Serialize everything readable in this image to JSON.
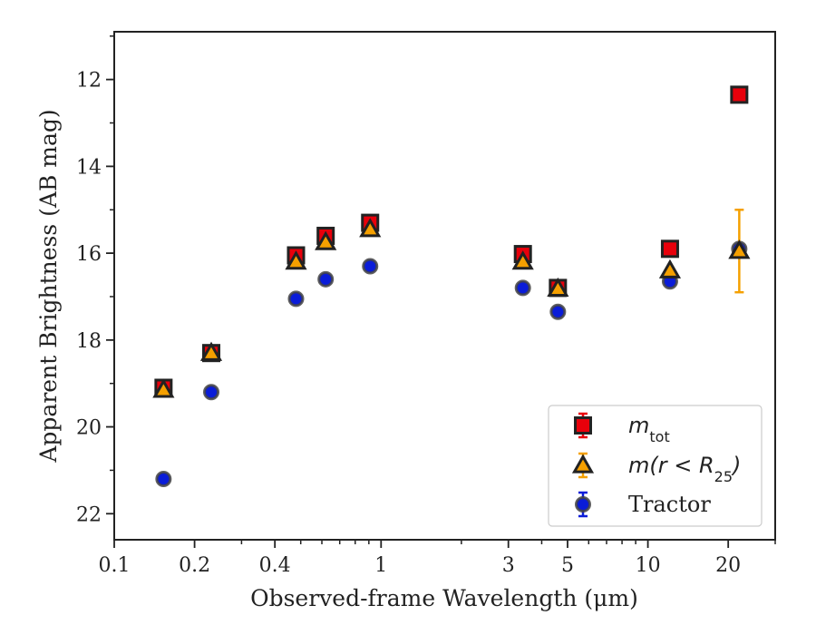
{
  "chart_data": {
    "type": "scatter",
    "title": "",
    "xlabel": "Observed-frame Wavelength (μm)",
    "ylabel": "Apparent Brightness (AB mag)",
    "xscale": "log",
    "xlim": [
      0.1,
      30
    ],
    "ylim": [
      22.6,
      10.9
    ],
    "y_inverted": true,
    "xticks": [
      {
        "value": 0.1,
        "label": "0.1"
      },
      {
        "value": 0.2,
        "label": "0.2"
      },
      {
        "value": 0.4,
        "label": "0.4"
      },
      {
        "value": 1,
        "label": "1"
      },
      {
        "value": 3,
        "label": "3"
      },
      {
        "value": 5,
        "label": "5"
      },
      {
        "value": 10,
        "label": "10"
      },
      {
        "value": 20,
        "label": "20"
      }
    ],
    "yticks": [
      {
        "value": 12,
        "label": "12"
      },
      {
        "value": 14,
        "label": "14"
      },
      {
        "value": 16,
        "label": "16"
      },
      {
        "value": 18,
        "label": "18"
      },
      {
        "value": 20,
        "label": "20"
      },
      {
        "value": 22,
        "label": "22"
      }
    ],
    "grid": false,
    "legend_position": "lower-right",
    "series": [
      {
        "name": "m_tot",
        "label_base": "m",
        "label_sub": "tot",
        "marker": "square",
        "color": "#e8000b",
        "edge": "#222222",
        "x": [
          0.153,
          0.231,
          0.48,
          0.62,
          0.91,
          3.4,
          4.6,
          12.1,
          22.0
        ],
        "y": [
          19.1,
          18.3,
          16.05,
          15.6,
          15.3,
          16.02,
          16.8,
          15.9,
          12.35
        ],
        "yerr": [
          0.05,
          0.05,
          0.03,
          0.03,
          0.03,
          0.03,
          0.05,
          0.05,
          0.05
        ]
      },
      {
        "name": "m(r < R_25)",
        "label_base": "m(r < R",
        "label_sub": "25",
        "label_tail": ")",
        "marker": "triangle",
        "color": "#f5a000",
        "edge": "#222222",
        "x": [
          0.153,
          0.231,
          0.48,
          0.62,
          0.91,
          3.4,
          4.6,
          12.1,
          22.0
        ],
        "y": [
          19.15,
          18.3,
          16.2,
          15.75,
          15.45,
          16.2,
          16.82,
          16.4,
          15.95
        ],
        "yerr": [
          0.05,
          0.05,
          0.03,
          0.03,
          0.03,
          0.03,
          0.05,
          0.05,
          0.95
        ]
      },
      {
        "name": "Tractor",
        "marker": "circle",
        "color": "#0a1cd8",
        "edge": "#444444",
        "x": [
          0.153,
          0.231,
          0.48,
          0.62,
          0.91,
          3.4,
          4.6,
          12.1,
          22.0
        ],
        "y": [
          21.2,
          19.2,
          17.05,
          16.6,
          16.3,
          16.8,
          17.35,
          16.65,
          15.9
        ],
        "yerr": [
          0.05,
          0.05,
          0.03,
          0.03,
          0.03,
          0.03,
          0.05,
          0.05,
          0.05
        ]
      }
    ]
  }
}
